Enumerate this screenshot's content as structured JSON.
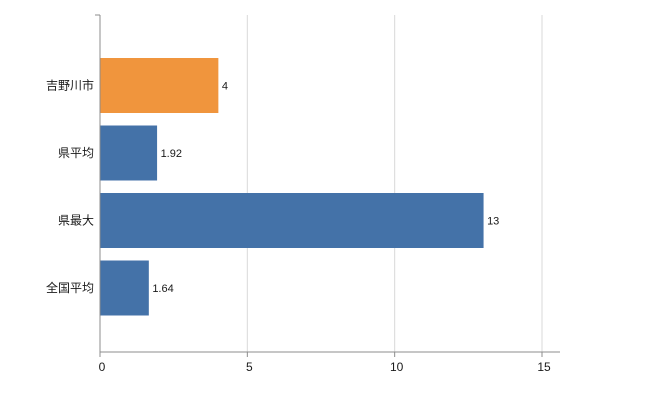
{
  "chart_data": {
    "type": "bar",
    "orientation": "horizontal",
    "title": "",
    "xlabel": "",
    "ylabel": "",
    "categories": [
      "吉野川市",
      "県平均",
      "県最大",
      "全国平均"
    ],
    "values": [
      4,
      1.92,
      13,
      1.64
    ],
    "value_labels": [
      "4",
      "1.92",
      "13",
      "1.64"
    ],
    "x_ticks": [
      0,
      5,
      10,
      15
    ],
    "x_tick_labels": [
      "0",
      "5",
      "10",
      "15"
    ],
    "xlim": [
      0,
      15
    ],
    "grid": true,
    "legend": "none",
    "colors": {
      "bar_highlight": "#f0953d",
      "bar_default": "#4472a8",
      "grid_line": "#d9d9d9",
      "axis_line": "#8c8c8c",
      "text": "#1a1a1a"
    }
  }
}
